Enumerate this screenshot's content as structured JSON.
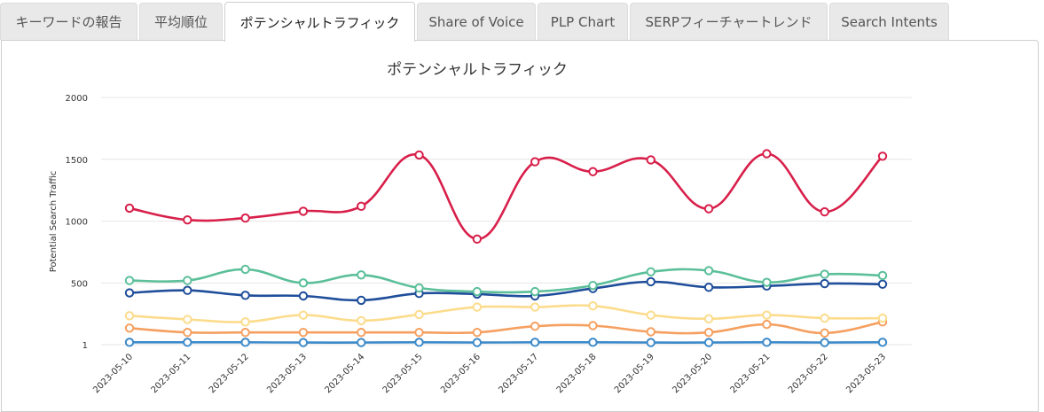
{
  "tabs": [
    {
      "label": "キーワードの報告",
      "active": false
    },
    {
      "label": "平均順位",
      "active": false
    },
    {
      "label": "ポテンシャルトラフィック",
      "active": true
    },
    {
      "label": "Share of Voice",
      "active": false
    },
    {
      "label": "PLP Chart",
      "active": false
    },
    {
      "label": "SERPフィーチャートレンド",
      "active": false
    },
    {
      "label": "Search Intents",
      "active": false
    }
  ],
  "chart_data": {
    "type": "line",
    "title": "ポテンシャルトラフィック",
    "xlabel": "",
    "ylabel": "Potential Search Traffic",
    "y_ticks": [
      1,
      500,
      1000,
      1500,
      2000
    ],
    "y_tick_labels": [
      "1",
      "500",
      "1000",
      "1500",
      "2000"
    ],
    "ylim": [
      1,
      2000
    ],
    "grid": true,
    "legend": "none",
    "categories": [
      "2023-05-10",
      "2023-05-11",
      "2023-05-12",
      "2023-05-13",
      "2023-05-14",
      "2023-05-15",
      "2023-05-16",
      "2023-05-17",
      "2023-05-18",
      "2023-05-19",
      "2023-05-20",
      "2023-05-21",
      "2023-05-22",
      "2023-05-23"
    ],
    "series": [
      {
        "color": "#d81f4a",
        "values": [
          1105,
          1010,
          1025,
          1080,
          1120,
          1535,
          855,
          1480,
          1400,
          1495,
          1100,
          1545,
          1075,
          1525
        ]
      },
      {
        "color": "#5bbf9a",
        "values": [
          520,
          520,
          610,
          500,
          565,
          460,
          430,
          430,
          480,
          590,
          600,
          505,
          570,
          560
        ]
      },
      {
        "color": "#1f4e9a",
        "values": [
          420,
          440,
          400,
          395,
          360,
          415,
          410,
          395,
          455,
          510,
          465,
          475,
          495,
          490
        ]
      },
      {
        "color": "#fcdc8c",
        "values": [
          235,
          205,
          185,
          240,
          195,
          245,
          305,
          305,
          315,
          240,
          210,
          240,
          215,
          215
        ]
      },
      {
        "color": "#f5a060",
        "values": [
          135,
          100,
          100,
          100,
          100,
          100,
          100,
          150,
          155,
          105,
          100,
          165,
          95,
          185
        ]
      },
      {
        "color": "#3d8ac9",
        "values": [
          20,
          20,
          20,
          18,
          18,
          20,
          18,
          20,
          20,
          18,
          18,
          20,
          18,
          20
        ]
      }
    ]
  }
}
